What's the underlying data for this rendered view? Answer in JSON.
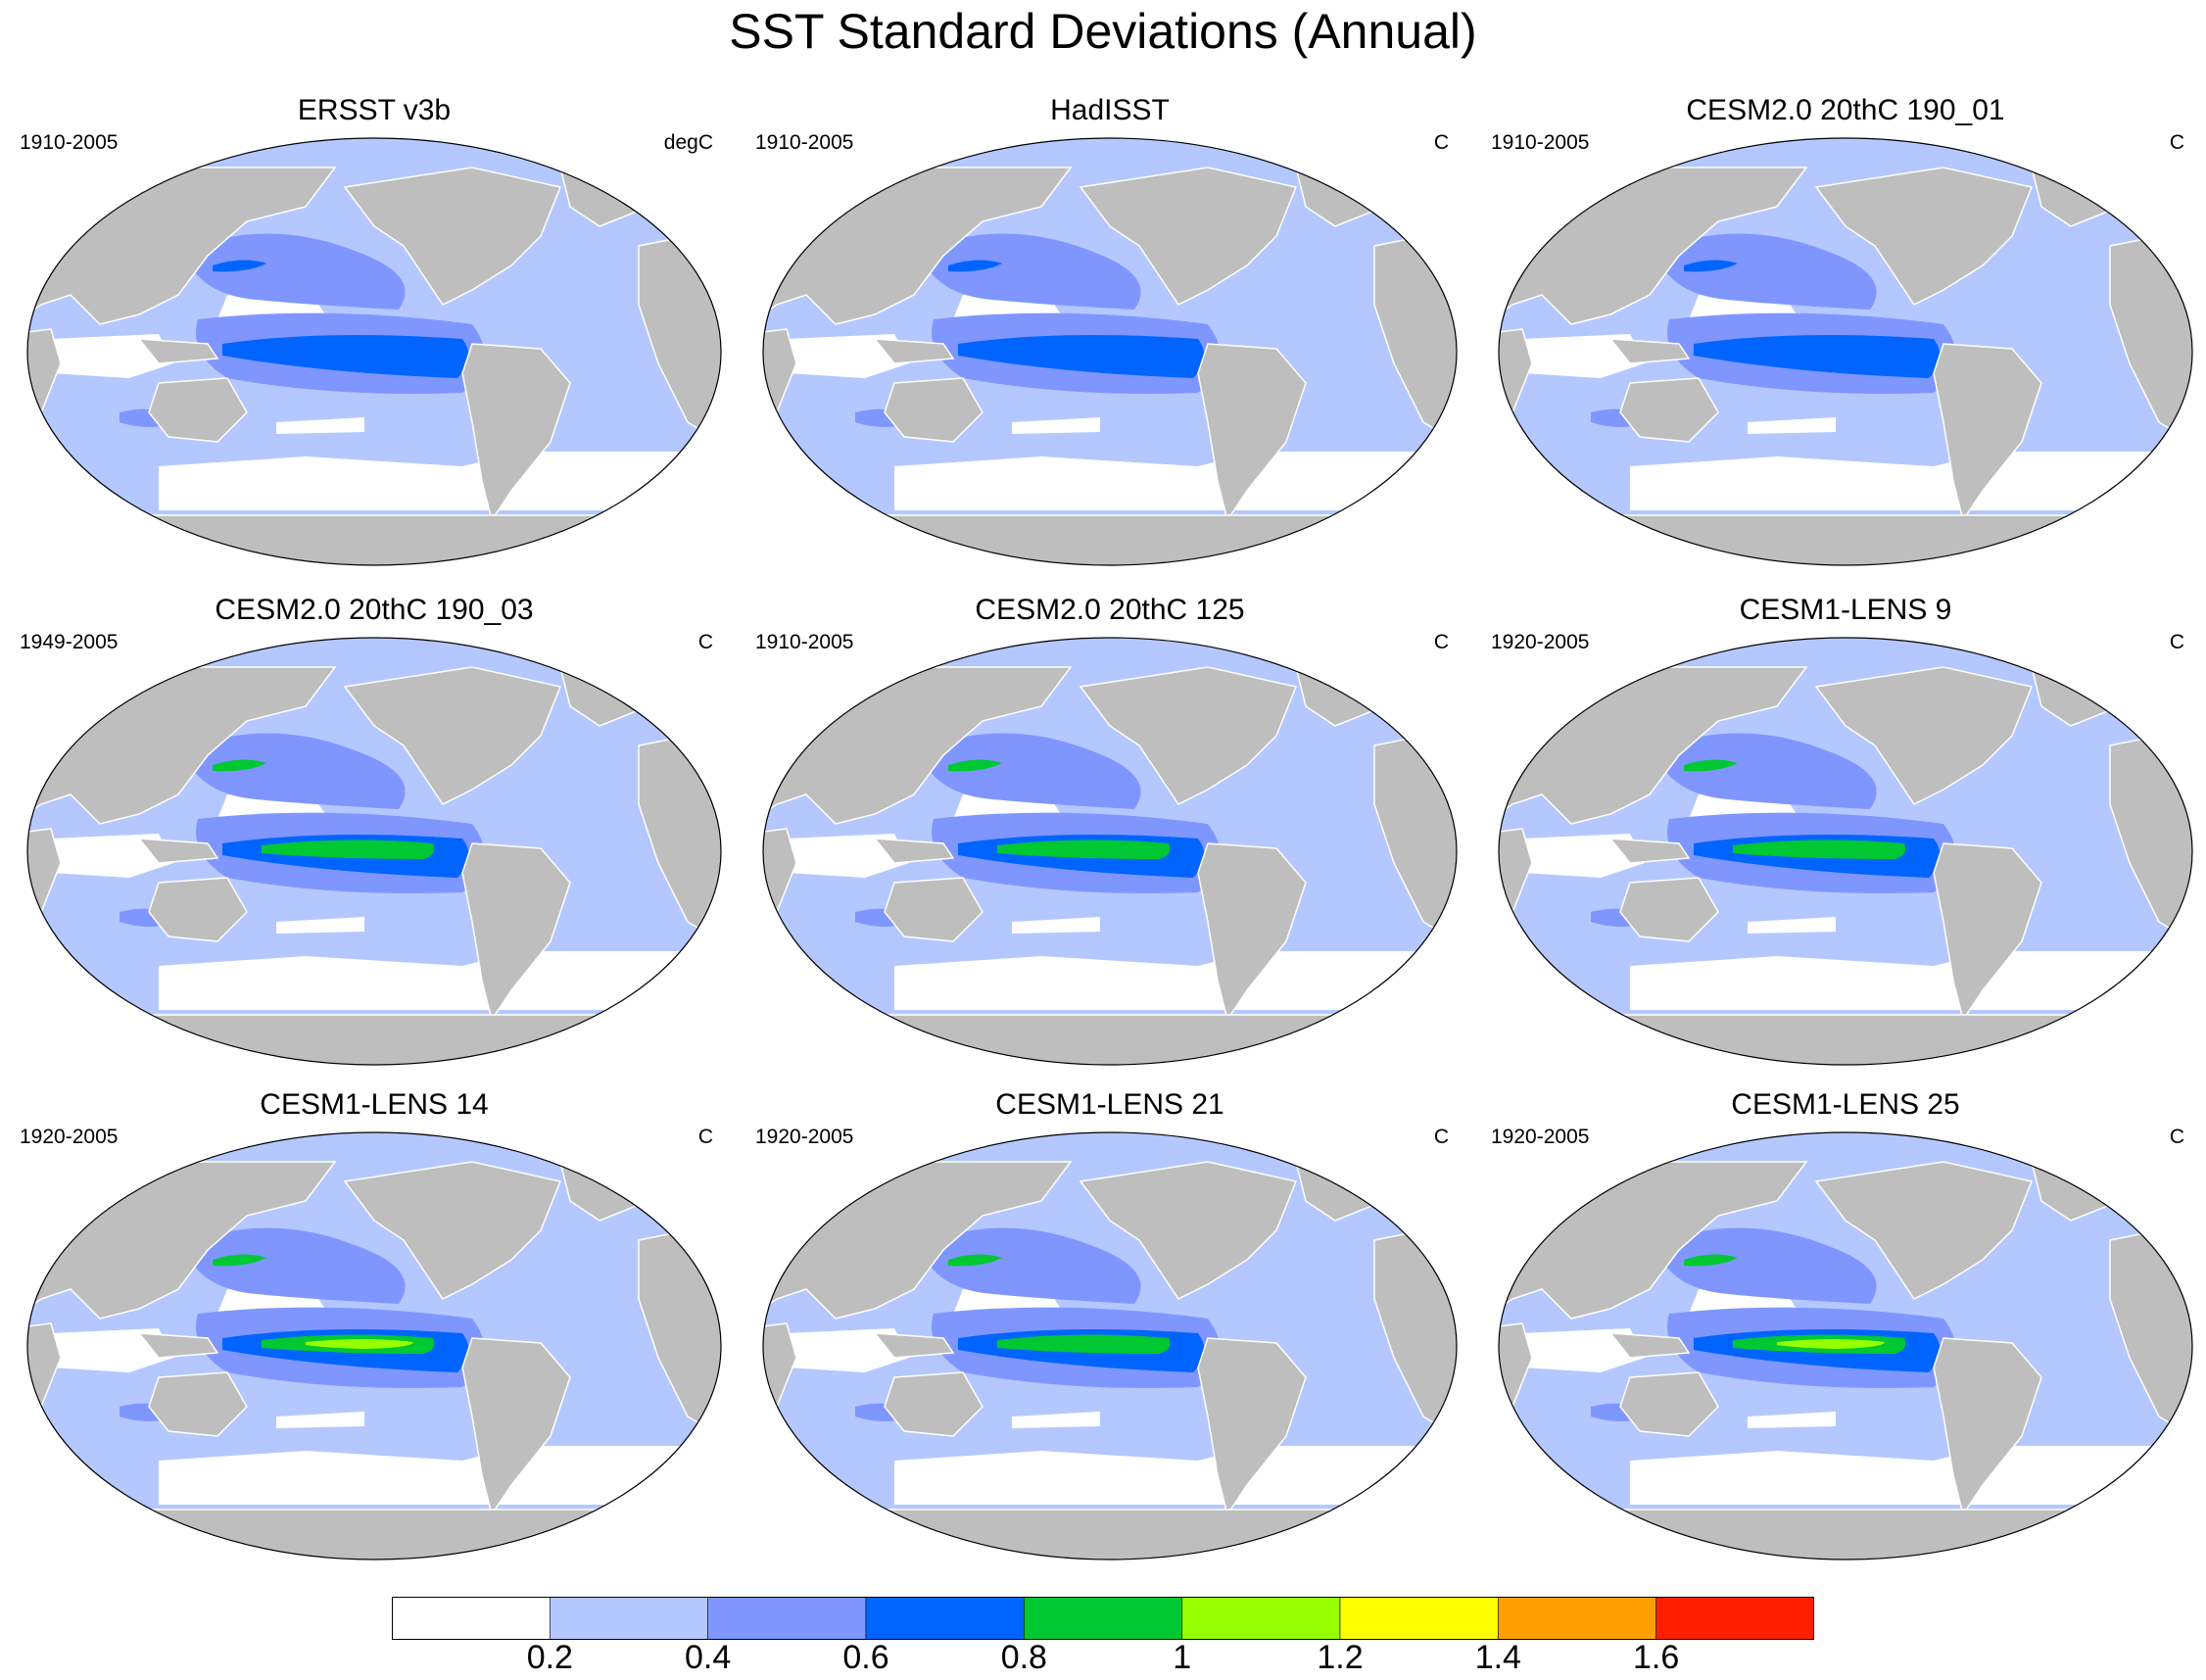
{
  "title": "SST Standard Deviations (Annual)",
  "panels": [
    {
      "title": "ERSST v3b",
      "period": "1910-2005",
      "units": "degC",
      "enso_level": 3
    },
    {
      "title": "HadISST",
      "period": "1910-2005",
      "units": "C",
      "enso_level": 3
    },
    {
      "title": "CESM2.0 20thC 190_01",
      "period": "1910-2005",
      "units": "C",
      "enso_level": 3
    },
    {
      "title": "CESM2.0 20thC 190_03",
      "period": "1949-2005",
      "units": "C",
      "enso_level": 4
    },
    {
      "title": "CESM2.0 20thC 125",
      "period": "1910-2005",
      "units": "C",
      "enso_level": 4
    },
    {
      "title": "CESM1-LENS 9",
      "period": "1920-2005",
      "units": "C",
      "enso_level": 4
    },
    {
      "title": "CESM1-LENS 14",
      "period": "1920-2005",
      "units": "C",
      "enso_level": 5
    },
    {
      "title": "CESM1-LENS 21",
      "period": "1920-2005",
      "units": "C",
      "enso_level": 4
    },
    {
      "title": "CESM1-LENS 25",
      "period": "1920-2005",
      "units": "C",
      "enso_level": 5
    }
  ],
  "colorbar": {
    "levels": [
      "0.2",
      "0.4",
      "0.6",
      "0.8",
      "1",
      "1.2",
      "1.4",
      "1.6"
    ],
    "colors": [
      "#ffffff",
      "#b4c8ff",
      "#8096ff",
      "#0064ff",
      "#00c832",
      "#96ff00",
      "#ffff00",
      "#ffa000",
      "#ff1e00"
    ]
  },
  "map_colors": {
    "land": "#bebebe",
    "coast": "#ffffff",
    "outline": "#000000"
  }
}
